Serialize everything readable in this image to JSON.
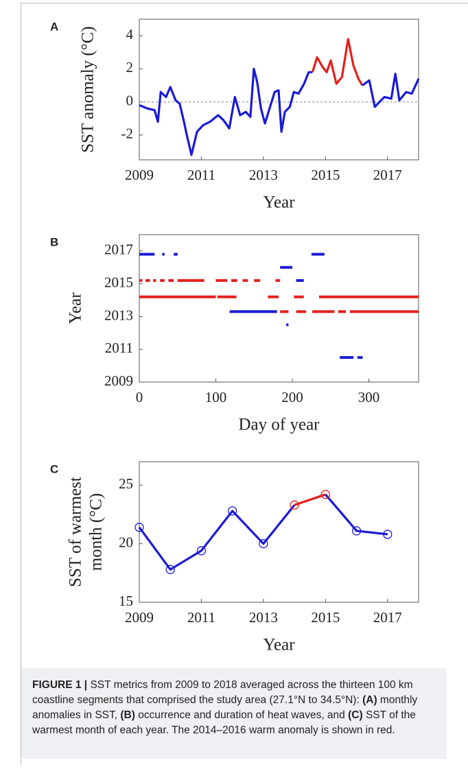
{
  "chart_data": [
    {
      "type": "line",
      "panel_label": "A",
      "xlabel": "Year",
      "ylabel": "SST anomaly (°C)",
      "xlim": [
        2009,
        2018
      ],
      "ylim": [
        -3.5,
        5
      ],
      "xticks": [
        2009,
        2011,
        2013,
        2015,
        2017
      ],
      "yticks": [
        -2,
        0,
        2,
        4
      ],
      "reference_line": 0,
      "color": "#1a1ad6",
      "highlight_color": "#e3201b",
      "highlight_range": [
        2014.58,
        2016.19
      ],
      "markers": false,
      "x": [
        2009.0,
        2009.27,
        2009.49,
        2009.6,
        2009.69,
        2009.86,
        2010.0,
        2010.17,
        2010.3,
        2010.44,
        2010.53,
        2010.68,
        2010.86,
        2011.06,
        2011.28,
        2011.54,
        2011.71,
        2011.9,
        2012.08,
        2012.25,
        2012.43,
        2012.58,
        2012.69,
        2012.8,
        2012.92,
        2013.05,
        2013.23,
        2013.36,
        2013.49,
        2013.58,
        2013.69,
        2013.85,
        2013.98,
        2014.13,
        2014.31,
        2014.46,
        2014.58,
        2014.73,
        2014.91,
        2015.04,
        2015.17,
        2015.35,
        2015.53,
        2015.73,
        2015.9,
        2016.06,
        2016.19,
        2016.41,
        2016.59,
        2016.74,
        2016.9,
        2017.12,
        2017.25,
        2017.38,
        2017.6,
        2017.78,
        2018.0
      ],
      "values": [
        -0.2,
        -0.4,
        -0.5,
        -1.2,
        0.6,
        0.3,
        0.9,
        0.1,
        -0.1,
        -1.2,
        -2.0,
        -3.2,
        -1.8,
        -1.4,
        -1.2,
        -0.8,
        -1.1,
        -1.6,
        0.3,
        -0.8,
        -0.6,
        -0.9,
        2.0,
        1.2,
        -0.4,
        -1.3,
        -0.2,
        0.6,
        0.7,
        -1.8,
        -0.6,
        -0.3,
        0.6,
        0.5,
        1.1,
        1.8,
        1.8,
        2.7,
        2.1,
        1.8,
        2.5,
        1.1,
        1.5,
        3.8,
        2.2,
        1.4,
        1.0,
        1.3,
        -0.3,
        0.0,
        0.3,
        0.2,
        1.7,
        0.1,
        0.6,
        0.5,
        1.4
      ]
    },
    {
      "type": "segments",
      "panel_label": "B",
      "xlabel": "Day of year",
      "ylabel": "Year",
      "xlim": [
        0,
        365
      ],
      "ylim": [
        2009,
        2018
      ],
      "xticks": [
        0,
        100,
        200,
        300
      ],
      "yticks": [
        2009,
        2011,
        2013,
        2015,
        2017
      ],
      "segments": [
        {
          "y": 2016.8,
          "start": 0,
          "end": 20,
          "color": "#1a1ad6"
        },
        {
          "y": 2016.8,
          "start": 30,
          "end": 33,
          "color": "#1a1ad6"
        },
        {
          "y": 2016.8,
          "start": 45,
          "end": 50,
          "color": "#1a1ad6"
        },
        {
          "y": 2016.8,
          "start": 225,
          "end": 242,
          "color": "#1a1ad6"
        },
        {
          "y": 2016.0,
          "start": 184,
          "end": 200,
          "color": "#1a1ad6"
        },
        {
          "y": 2015.2,
          "start": 0,
          "end": 4,
          "color": "#e3201b"
        },
        {
          "y": 2015.2,
          "start": 8,
          "end": 14,
          "color": "#e3201b"
        },
        {
          "y": 2015.2,
          "start": 18,
          "end": 22,
          "color": "#e3201b"
        },
        {
          "y": 2015.2,
          "start": 27,
          "end": 33,
          "color": "#e3201b"
        },
        {
          "y": 2015.2,
          "start": 38,
          "end": 45,
          "color": "#e3201b"
        },
        {
          "y": 2015.2,
          "start": 50,
          "end": 85,
          "color": "#e3201b"
        },
        {
          "y": 2015.2,
          "start": 100,
          "end": 115,
          "color": "#e3201b"
        },
        {
          "y": 2015.2,
          "start": 120,
          "end": 128,
          "color": "#e3201b"
        },
        {
          "y": 2015.2,
          "start": 135,
          "end": 142,
          "color": "#e3201b"
        },
        {
          "y": 2015.2,
          "start": 150,
          "end": 158,
          "color": "#e3201b"
        },
        {
          "y": 2015.2,
          "start": 178,
          "end": 184,
          "color": "#e3201b"
        },
        {
          "y": 2015.2,
          "start": 205,
          "end": 215,
          "color": "#1a1ad6"
        },
        {
          "y": 2014.2,
          "start": 0,
          "end": 100,
          "color": "#e3201b"
        },
        {
          "y": 2014.2,
          "start": 102,
          "end": 127,
          "color": "#e3201b"
        },
        {
          "y": 2014.2,
          "start": 168,
          "end": 182,
          "color": "#e3201b"
        },
        {
          "y": 2014.2,
          "start": 202,
          "end": 215,
          "color": "#e3201b"
        },
        {
          "y": 2014.2,
          "start": 235,
          "end": 365,
          "color": "#e3201b"
        },
        {
          "y": 2013.3,
          "start": 118,
          "end": 180,
          "color": "#1a1ad6"
        },
        {
          "y": 2013.3,
          "start": 184,
          "end": 195,
          "color": "#e3201b"
        },
        {
          "y": 2013.3,
          "start": 205,
          "end": 218,
          "color": "#e3201b"
        },
        {
          "y": 2013.3,
          "start": 226,
          "end": 255,
          "color": "#e3201b"
        },
        {
          "y": 2013.3,
          "start": 260,
          "end": 270,
          "color": "#e3201b"
        },
        {
          "y": 2013.3,
          "start": 275,
          "end": 365,
          "color": "#e3201b"
        },
        {
          "y": 2012.5,
          "start": 192,
          "end": 195,
          "color": "#1a1ad6"
        },
        {
          "y": 2010.5,
          "start": 262,
          "end": 280,
          "color": "#1a1ad6"
        },
        {
          "y": 2010.5,
          "start": 285,
          "end": 292,
          "color": "#1a1ad6"
        }
      ]
    },
    {
      "type": "line",
      "panel_label": "C",
      "xlabel": "Year",
      "ylabel": [
        "SST of warmest",
        "month (°C)"
      ],
      "xlim": [
        2009,
        2018
      ],
      "ylim": [
        15,
        27
      ],
      "xticks": [
        2009,
        2011,
        2013,
        2015,
        2017
      ],
      "yticks": [
        15,
        20,
        25
      ],
      "color": "#1a1ad6",
      "highlight_color": "#e3201b",
      "highlight_range": [
        2014,
        2015
      ],
      "markers": true,
      "x": [
        2009,
        2010,
        2011,
        2012,
        2013,
        2014,
        2015,
        2016,
        2017
      ],
      "values": [
        21.4,
        17.8,
        19.4,
        22.8,
        20.0,
        23.3,
        24.2,
        21.1,
        20.8
      ]
    }
  ],
  "caption": [
    {
      "text": "FIGURE 1 |",
      "bold": true
    },
    {
      "text": " SST metrics from 2009 to 2018 averaged across the thirteen 100 km coastline segments that comprised the study area (27.1°N to 34.5°N): ",
      "bold": false
    },
    {
      "text": "(A)",
      "bold": true
    },
    {
      "text": " monthly anomalies in SST, ",
      "bold": false
    },
    {
      "text": "(B)",
      "bold": true
    },
    {
      "text": " occurrence and duration of heat waves, and ",
      "bold": false
    },
    {
      "text": "(C)",
      "bold": true
    },
    {
      "text": " SST of the warmest month of each year. The 2014–2016 warm anomaly is shown in red.",
      "bold": false
    }
  ]
}
